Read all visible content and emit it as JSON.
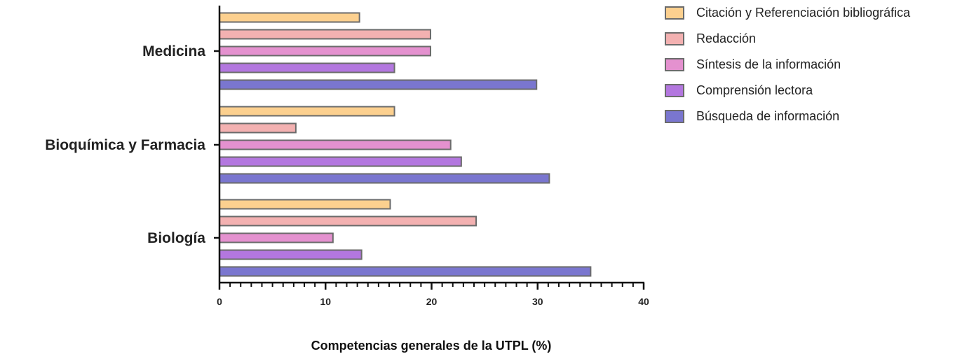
{
  "chart_data": {
    "type": "bar",
    "orientation": "horizontal",
    "title": "",
    "xlabel": "Competencias generales de la UTPL (%)",
    "ylabel": "",
    "xlim": [
      0,
      40
    ],
    "xticks": [
      0,
      10,
      20,
      30,
      40
    ],
    "grid": false,
    "legend_position": "top-right",
    "categories": [
      "Medicina",
      "Bioquímica y Farmacia",
      "Biología"
    ],
    "series": [
      {
        "name": "Citación y Referenciación bibliográfica",
        "color": "#FCD08F",
        "values": [
          13.2,
          16.5,
          16.1
        ]
      },
      {
        "name": "Redacción",
        "color": "#F3B1B1",
        "values": [
          19.9,
          7.2,
          24.2
        ]
      },
      {
        "name": "Síntesis de la información",
        "color": "#E491CF",
        "values": [
          19.9,
          21.8,
          10.7
        ]
      },
      {
        "name": "Comprensión lectora",
        "color": "#B377DF",
        "values": [
          16.5,
          22.8,
          13.4
        ]
      },
      {
        "name": "Búsqueda de información",
        "color": "#7A76CF",
        "values": [
          29.9,
          31.1,
          35.0
        ]
      }
    ],
    "bar_edge_color": "#6b6b6b",
    "axis_color": "#111111"
  }
}
